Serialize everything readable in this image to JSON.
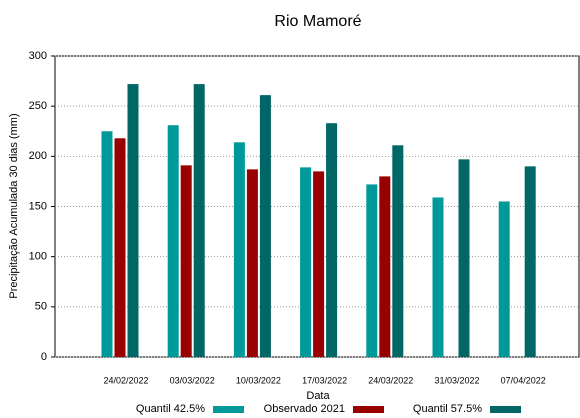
{
  "chart_data": {
    "type": "bar",
    "title": "Rio Mamoré",
    "x_label": "Data",
    "y_label": "Precipitação Acumulada 30 dias (mm)",
    "categories": [
      "24/02/2022",
      "03/03/2022",
      "10/03/2022",
      "17/03/2022",
      "24/03/2022",
      "31/03/2022",
      "07/04/2022"
    ],
    "series": [
      {
        "name": "Quantil 42.5%",
        "color": "#009999",
        "values": [
          225,
          231,
          214,
          189,
          172,
          159,
          155
        ]
      },
      {
        "name": "Observado 2021",
        "color": "#990000",
        "values": [
          218,
          191,
          187,
          185,
          180,
          null,
          null
        ]
      },
      {
        "name": "Quantil 57.5%",
        "color": "#006666",
        "values": [
          272,
          272,
          261,
          233,
          211,
          197,
          190
        ]
      }
    ],
    "ylim": [
      0,
      300
    ],
    "yticks": [
      0,
      50,
      100,
      150,
      200,
      250,
      300
    ],
    "grid": true,
    "legend": "bottom"
  }
}
